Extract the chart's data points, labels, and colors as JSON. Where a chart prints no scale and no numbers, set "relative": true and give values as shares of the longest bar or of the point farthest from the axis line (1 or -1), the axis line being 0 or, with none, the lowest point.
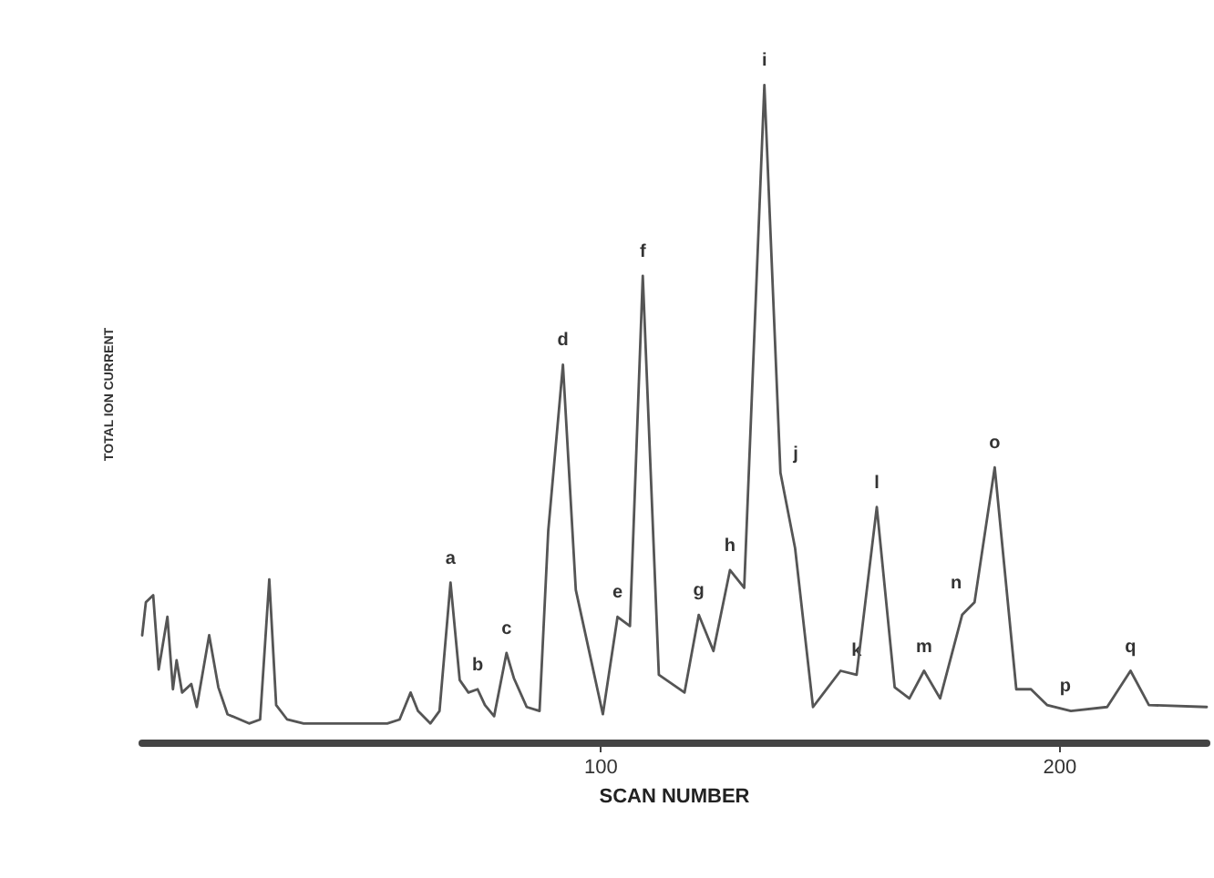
{
  "chart_data": {
    "type": "line",
    "xlabel": "SCAN NUMBER",
    "ylabel": "TOTAL ION CURRENT",
    "relative": true,
    "x": [
      0.0,
      0.8,
      2.4,
      3.6,
      5.5,
      6.7,
      7.5,
      8.7,
      10.7,
      11.9,
      14.6,
      16.6,
      18.6,
      23.3,
      25.7,
      27.7,
      29.2,
      31.6,
      35.2,
      40.3,
      48.2,
      53.4,
      56.1,
      58.5,
      60.1,
      62.8,
      64.8,
      67.2,
      69.2,
      71.1,
      73.1,
      74.7,
      76.7,
      79.4,
      81.0,
      83.8,
      86.6,
      88.5,
      91.7,
      94.5,
      100.4,
      103.6,
      106.3,
      109.1,
      112.6,
      118.2,
      121.3,
      124.5,
      128.1,
      131.2,
      135.6,
      139.1,
      142.3,
      146.2,
      152.2,
      155.7,
      160.1,
      164.0,
      167.2,
      170.4,
      173.9,
      178.7,
      181.4,
      185.8,
      190.5,
      193.7,
      197.2,
      202.4,
      210.3,
      215.4,
      219.4,
      232.0
    ],
    "series": [
      {
        "color": "#555555",
        "values": [
          0.164,
          0.214,
          0.225,
          0.112,
          0.192,
          0.082,
          0.126,
          0.077,
          0.09,
          0.055,
          0.164,
          0.085,
          0.044,
          0.03,
          0.036,
          0.249,
          0.058,
          0.036,
          0.03,
          0.03,
          0.03,
          0.03,
          0.036,
          0.077,
          0.049,
          0.03,
          0.049,
          0.244,
          0.096,
          0.077,
          0.082,
          0.058,
          0.041,
          0.137,
          0.099,
          0.055,
          0.049,
          0.323,
          0.575,
          0.233,
          0.044,
          0.192,
          0.178,
          0.71,
          0.104,
          0.077,
          0.195,
          0.14,
          0.263,
          0.236,
          1.0,
          0.411,
          0.296,
          0.055,
          0.11,
          0.104,
          0.359,
          0.085,
          0.068,
          0.11,
          0.068,
          0.195,
          0.214,
          0.419,
          0.082,
          0.082,
          0.058,
          0.049,
          0.055,
          0.11,
          0.058,
          0.055
        ]
      }
    ],
    "xlim": [
      0,
      232
    ],
    "xticks": [
      100,
      200
    ],
    "grid": false,
    "marker": "none",
    "line_style": "solid",
    "annotations": [
      {
        "text": "a",
        "x": 67.2,
        "y": 0.244
      },
      {
        "text": "b",
        "x": 73.1,
        "y": 0.082
      },
      {
        "text": "c",
        "x": 79.4,
        "y": 0.137
      },
      {
        "text": "d",
        "x": 91.7,
        "y": 0.575
      },
      {
        "text": "e",
        "x": 103.6,
        "y": 0.192
      },
      {
        "text": "f",
        "x": 109.1,
        "y": 0.71
      },
      {
        "text": "g",
        "x": 121.3,
        "y": 0.195
      },
      {
        "text": "h",
        "x": 128.1,
        "y": 0.263
      },
      {
        "text": "i",
        "x": 135.6,
        "y": 1.0
      },
      {
        "text": "j",
        "x": 139.1,
        "y": 0.411
      },
      {
        "text": "k",
        "x": 155.7,
        "y": 0.104
      },
      {
        "text": "l",
        "x": 160.1,
        "y": 0.359
      },
      {
        "text": "m",
        "x": 170.4,
        "y": 0.11
      },
      {
        "text": "n",
        "x": 181.4,
        "y": 0.214
      },
      {
        "text": "o",
        "x": 185.8,
        "y": 0.419
      },
      {
        "text": "p",
        "x": 197.2,
        "y": 0.058
      },
      {
        "text": "q",
        "x": 215.4,
        "y": 0.11
      }
    ]
  }
}
